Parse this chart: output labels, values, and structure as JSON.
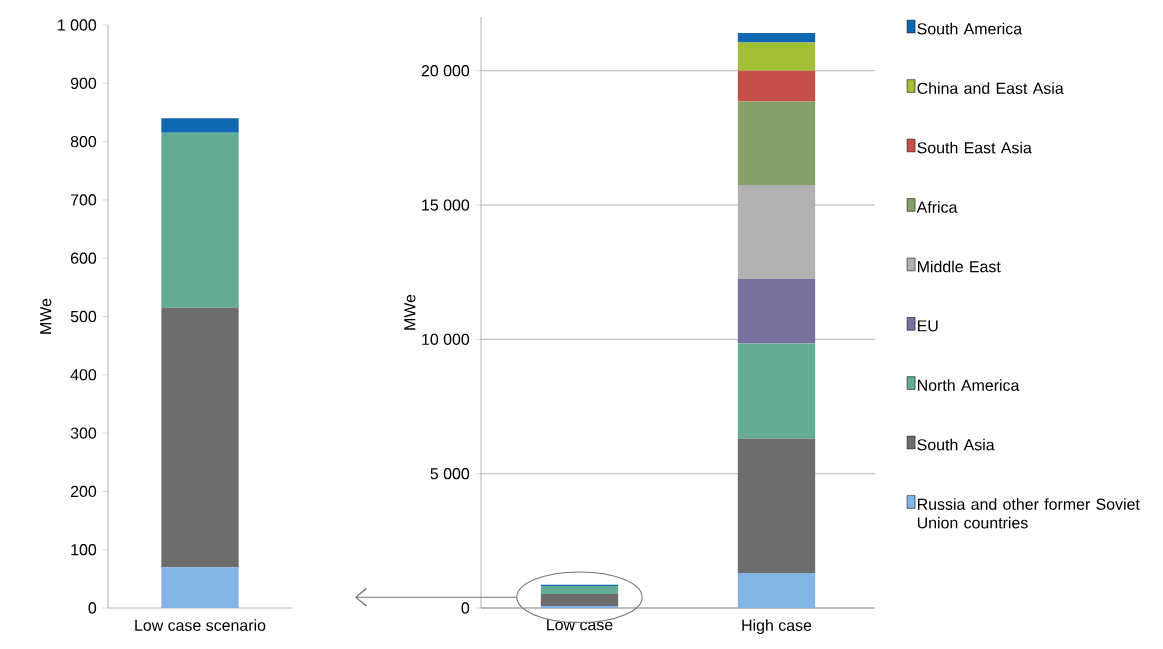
{
  "chart_data": [
    {
      "type": "bar",
      "stacked": true,
      "ylabel": "MWe",
      "categories": [
        "Low case scenario"
      ],
      "ylim": [
        0,
        1000
      ],
      "yticks": [
        0,
        100,
        200,
        300,
        400,
        500,
        600,
        700,
        800,
        900,
        {
          "value": 1000,
          "label": "1 000"
        }
      ],
      "series": [
        {
          "color": "#83b5e4",
          "values": [
            70
          ]
        },
        {
          "color": "#6d6d6d",
          "values": [
            445
          ]
        },
        {
          "color": "#63ad95",
          "values": [
            300
          ]
        },
        {
          "color": "#0f68b1",
          "values": [
            25
          ]
        }
      ]
    },
    {
      "type": "bar",
      "stacked": true,
      "ylabel": "MWe",
      "categories": [
        "Low case",
        "High case"
      ],
      "ylim": [
        0,
        22000
      ],
      "yticks": [
        0,
        {
          "value": 5000,
          "label": "5 000"
        },
        {
          "value": 10000,
          "label": "10 000"
        },
        {
          "value": 15000,
          "label": "15 000"
        },
        {
          "value": 20000,
          "label": "20 000"
        }
      ],
      "grid": "y",
      "legend": "right",
      "series": [
        {
          "name": "Russia and other former Soviet Union countries",
          "color": "#83b5e4",
          "values": [
            70,
            1300
          ]
        },
        {
          "name": "South Asia",
          "color": "#6d6d6d",
          "values": [
            450,
            5000
          ]
        },
        {
          "name": "North America",
          "color": "#63ad95",
          "values": [
            300,
            3550
          ]
        },
        {
          "name": "EU",
          "color": "#7a70a0",
          "values": [
            null,
            2400
          ]
        },
        {
          "name": "Middle East",
          "color": "#b2b2b2",
          "values": [
            null,
            3500
          ]
        },
        {
          "name": "Africa",
          "color": "#85a068",
          "values": [
            null,
            3100
          ]
        },
        {
          "name": "South East Asia",
          "color": "#c65048",
          "values": [
            null,
            1150
          ]
        },
        {
          "name": "China and East Asia",
          "color": "#a2bf35",
          "values": [
            null,
            1050
          ]
        },
        {
          "name": "South America",
          "color": "#0f68b1",
          "values": [
            50,
            350
          ]
        }
      ]
    }
  ]
}
